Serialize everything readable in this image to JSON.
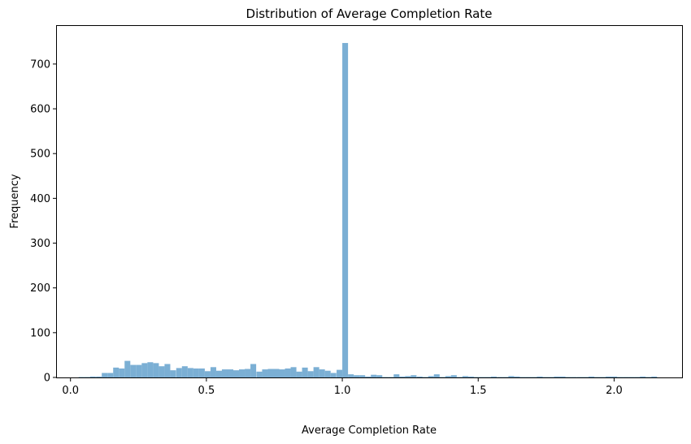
{
  "chart_data": {
    "type": "bar",
    "title": "Distribution of Average Completion Rate",
    "xlabel": "Average Completion Rate",
    "ylabel": "Frequency",
    "xlim": [
      -0.05,
      2.25
    ],
    "ylim": [
      0,
      785
    ],
    "xticks": [
      0.0,
      0.5,
      1.0,
      1.5,
      2.0
    ],
    "xtick_labels": [
      "0.0",
      "0.5",
      "1.0",
      "1.5",
      "2.0"
    ],
    "yticks": [
      0,
      100,
      200,
      300,
      400,
      500,
      600,
      700
    ],
    "ytick_labels": [
      "0",
      "100",
      "200",
      "300",
      "400",
      "500",
      "600",
      "700"
    ],
    "bar_color": "#7bafd4",
    "grid": false,
    "legend": "none",
    "bin_width": 0.0211,
    "bins_start": [
      0.03,
      0.051,
      0.072,
      0.094,
      0.115,
      0.136,
      0.157,
      0.178,
      0.199,
      0.22,
      0.241,
      0.262,
      0.283,
      0.304,
      0.325,
      0.346,
      0.367,
      0.389,
      0.41,
      0.431,
      0.452,
      0.473,
      0.494,
      0.515,
      0.536,
      0.557,
      0.578,
      0.599,
      0.62,
      0.641,
      0.662,
      0.684,
      0.705,
      0.726,
      0.747,
      0.768,
      0.789,
      0.81,
      0.831,
      0.852,
      0.873,
      0.894,
      0.915,
      0.936,
      0.957,
      0.979,
      1.0,
      1.021,
      1.042,
      1.063,
      1.084,
      1.105,
      1.126,
      1.147,
      1.168,
      1.189,
      1.21,
      1.231,
      1.252,
      1.274,
      1.295,
      1.316,
      1.337,
      1.358,
      1.379,
      1.4,
      1.421,
      1.442,
      1.463,
      1.484,
      1.505,
      1.526,
      1.547,
      1.569,
      1.59,
      1.611,
      1.632,
      1.653,
      1.674,
      1.695,
      1.716,
      1.737,
      1.758,
      1.779,
      1.8,
      1.821,
      1.842,
      1.864,
      1.885,
      1.906,
      1.927,
      1.948,
      1.969,
      1.99,
      2.011,
      2.032,
      2.053,
      2.074,
      2.095,
      2.116,
      2.137
    ],
    "values": [
      1,
      1,
      2,
      2,
      10,
      10,
      22,
      20,
      37,
      28,
      28,
      32,
      34,
      32,
      25,
      30,
      16,
      21,
      25,
      21,
      20,
      20,
      14,
      23,
      15,
      18,
      18,
      16,
      18,
      19,
      30,
      13,
      18,
      19,
      19,
      18,
      20,
      23,
      13,
      22,
      14,
      23,
      18,
      15,
      10,
      17,
      747,
      7,
      5,
      5,
      2,
      6,
      5,
      1,
      1,
      7,
      2,
      3,
      5,
      2,
      1,
      3,
      7,
      1,
      3,
      5,
      1,
      3,
      2,
      1,
      1,
      1,
      2,
      1,
      1,
      3,
      2,
      1,
      1,
      1,
      2,
      1,
      1,
      2,
      2,
      1,
      1,
      1,
      1,
      2,
      1,
      1,
      2,
      2,
      1,
      1,
      1,
      1,
      2,
      1,
      2
    ]
  }
}
